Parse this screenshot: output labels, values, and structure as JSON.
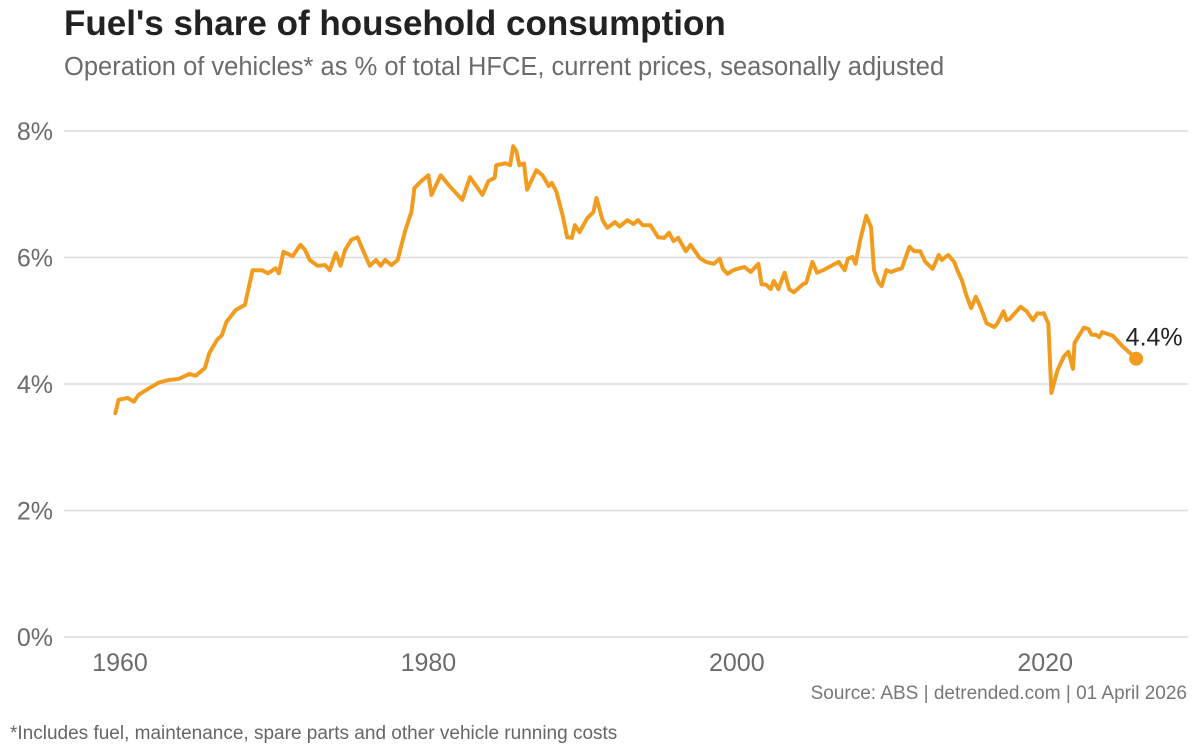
{
  "header": {
    "title": "Fuel's share of household consumption",
    "subtitle": "Operation of vehicles* as % of total HFCE, current prices, seasonally adjusted"
  },
  "footer": {
    "source": "Source: ABS | detrended.com | 01 April 2026",
    "footnote": "*Includes fuel, maintenance, spare parts and other vehicle running costs"
  },
  "chart_data": {
    "type": "line",
    "title": "Fuel's share of household consumption",
    "subtitle": "Operation of vehicles* as % of total HFCE, current prices, seasonally adjusted",
    "xlabel": "",
    "ylabel": "",
    "xlim": [
      1957,
      2029
    ],
    "ylim": [
      0,
      8
    ],
    "x_ticks": [
      1960,
      1980,
      2000,
      2020
    ],
    "x_tick_labels": [
      "1960",
      "1980",
      "2000",
      "2020"
    ],
    "y_ticks": [
      0,
      2,
      4,
      6,
      8
    ],
    "y_tick_labels": [
      "0%",
      "2%",
      "4%",
      "6%",
      "8%"
    ],
    "grid": "horizontal",
    "line_color": "#F29C1F",
    "end_label": "4.4%",
    "series": [
      {
        "x": [
          1959.7,
          1959.9,
          1960.5,
          1960.9,
          1961.2,
          1961.8,
          1962.5,
          1963.1,
          1963.8,
          1964.5,
          1964.9,
          1965.5,
          1965.8,
          1966.3,
          1966.6,
          1966.9,
          1967.5,
          1968.1,
          1968.6,
          1969.2,
          1969.6,
          1970.1,
          1970.3,
          1970.6,
          1971.2,
          1971.7,
          1972.0,
          1972.3,
          1972.8,
          1973.3,
          1973.6,
          1974.0,
          1974.3,
          1974.6,
          1975.0,
          1975.4,
          1975.8,
          1976.2,
          1976.6,
          1976.9,
          1977.2,
          1977.6,
          1978.0,
          1978.5,
          1978.9,
          1979.1,
          1979.6,
          1980.0,
          1980.2,
          1980.8,
          1981.3,
          1982.2,
          1982.7,
          1983.5,
          1983.9,
          1984.3,
          1984.4,
          1985.0,
          1985.3,
          1985.5,
          1985.7,
          1985.9,
          1986.2,
          1986.4,
          1987.0,
          1987.4,
          1987.8,
          1988.0,
          1988.3,
          1988.7,
          1989.0,
          1989.3,
          1989.5,
          1989.8,
          1990.3,
          1990.7,
          1990.9,
          1991.3,
          1991.6,
          1992.1,
          1992.4,
          1992.9,
          1993.3,
          1993.6,
          1993.9,
          1994.4,
          1994.9,
          1995.3,
          1995.6,
          1995.9,
          1996.2,
          1996.7,
          1997.0,
          1997.6,
          1998.0,
          1998.5,
          1998.9,
          1999.1,
          1999.4,
          1999.7,
          2000.0,
          2000.5,
          2000.9,
          2001.4,
          2001.6,
          2001.9,
          2002.2,
          2002.4,
          2002.7,
          2003.1,
          2003.4,
          2003.7,
          2004.3,
          2004.5,
          2004.9,
          2005.2,
          2005.6,
          2006.6,
          2007.0,
          2007.2,
          2007.5,
          2007.7,
          2008.0,
          2008.4,
          2008.7,
          2008.9,
          2009.2,
          2009.4,
          2009.7,
          2010.0,
          2010.3,
          2010.7,
          2011.2,
          2011.5,
          2011.9,
          2012.2,
          2012.7,
          2013.1,
          2013.3,
          2013.7,
          2014.1,
          2014.3,
          2014.6,
          2014.9,
          2015.2,
          2015.5,
          2015.8,
          2016.2,
          2016.7,
          2016.9,
          2017.3,
          2017.5,
          2017.7,
          2018.4,
          2018.8,
          2019.2,
          2019.5,
          2019.7,
          2019.9,
          2020.2,
          2020.4,
          2020.8,
          2021.2,
          2021.5,
          2021.8,
          2021.9,
          2022.5,
          2022.8,
          2023.0,
          2023.3,
          2023.5,
          2023.7,
          2024.4,
          2025.0,
          2025.9
        ],
        "y": [
          3.54,
          3.75,
          3.78,
          3.72,
          3.83,
          3.92,
          4.02,
          4.06,
          4.08,
          4.16,
          4.13,
          4.25,
          4.49,
          4.7,
          4.77,
          4.98,
          5.17,
          5.25,
          5.8,
          5.8,
          5.75,
          5.83,
          5.75,
          6.09,
          6.02,
          6.2,
          6.12,
          5.96,
          5.87,
          5.88,
          5.8,
          6.07,
          5.87,
          6.12,
          6.28,
          6.32,
          6.09,
          5.87,
          5.96,
          5.87,
          5.96,
          5.88,
          5.96,
          6.43,
          6.72,
          7.1,
          7.22,
          7.3,
          6.99,
          7.3,
          7.15,
          6.91,
          7.27,
          6.99,
          7.21,
          7.26,
          7.46,
          7.49,
          7.46,
          7.76,
          7.68,
          7.46,
          7.49,
          7.07,
          7.38,
          7.3,
          7.13,
          7.18,
          7.04,
          6.67,
          6.32,
          6.31,
          6.51,
          6.4,
          6.62,
          6.72,
          6.94,
          6.59,
          6.47,
          6.56,
          6.49,
          6.59,
          6.53,
          6.59,
          6.51,
          6.51,
          6.32,
          6.31,
          6.39,
          6.26,
          6.31,
          6.1,
          6.2,
          5.99,
          5.93,
          5.9,
          5.98,
          5.82,
          5.74,
          5.79,
          5.82,
          5.85,
          5.77,
          5.9,
          5.58,
          5.57,
          5.5,
          5.63,
          5.5,
          5.76,
          5.5,
          5.45,
          5.58,
          5.6,
          5.93,
          5.76,
          5.8,
          5.93,
          5.8,
          5.98,
          6.01,
          5.9,
          6.28,
          6.66,
          6.48,
          5.8,
          5.6,
          5.55,
          5.8,
          5.77,
          5.8,
          5.83,
          6.17,
          6.1,
          6.1,
          5.94,
          5.82,
          6.04,
          5.96,
          6.04,
          5.93,
          5.8,
          5.64,
          5.39,
          5.2,
          5.38,
          5.22,
          4.96,
          4.9,
          4.96,
          5.15,
          5.01,
          5.03,
          5.22,
          5.15,
          5.01,
          5.12,
          5.11,
          5.12,
          4.96,
          3.86,
          4.22,
          4.43,
          4.51,
          4.24,
          4.65,
          4.89,
          4.87,
          4.78,
          4.78,
          4.74,
          4.82,
          4.76,
          4.6,
          4.4
        ]
      }
    ]
  }
}
